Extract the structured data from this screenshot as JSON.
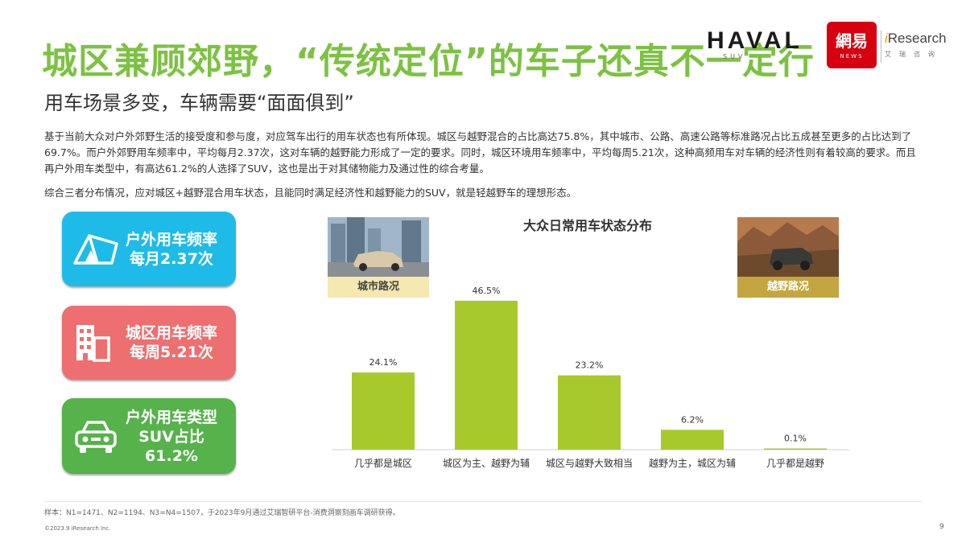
{
  "header": {
    "title": "城区兼顾郊野，“传统定位”的车子还真不一定行",
    "subtitle": "用车场景多变，车辆需要“面面俱到”"
  },
  "logos": {
    "haval_word": "HAVAL",
    "haval_tag": "SUV",
    "netease_cn": "網易",
    "netease_en": "NEWS",
    "iresearch_word": "iResearch",
    "iresearch_cn": "艾瑞咨询"
  },
  "body": {
    "paragraph1": "基于当前大众对户外郊野生活的接受度和参与度，对应驾车出行的用车状态也有所体现。城区与越野混合的占比高达75.8%，其中城市、公路、高速公路等标准路况占比五成甚至更多的占比达到了69.7%。而户外郊野用车频率中，平均每月2.37次，这对车辆的越野能力形成了一定的要求。同时，城区环境用车频率中，平均每周5.21次，这种高频用车对车辆的经济性则有着较高的要求。而且再户外用车类型中，有高达61.2%的人选择了SUV，这也是出于对其储物能力及通过性的综合考量。",
    "paragraph2": "综合三者分布情况，应对城区+越野混合用车状态，且能同时满足经济性和越野能力的SUV，就是轻越野车的理想形态。"
  },
  "cards": [
    {
      "line1": "户外用车频率",
      "line2": "每月2.37次",
      "line3": "",
      "color": "#1fbbe8",
      "icon": "tent-icon"
    },
    {
      "line1": "城区用车频率",
      "line2": "每周5.21次",
      "line3": "",
      "color": "#ed6f70",
      "icon": "building-icon"
    },
    {
      "line1": "户外用车类型",
      "line2": "SUV占比",
      "line3": "61.2%",
      "color": "#56b24a",
      "icon": "car-icon"
    }
  ],
  "photos": {
    "city_caption": "城市路况",
    "offroad_caption": "越野路况"
  },
  "chart_data": {
    "type": "bar",
    "title": "大众日常用车状态分布",
    "categories": [
      "几乎都是城区",
      "城区为主、越野为辅",
      "城区与越野大致相当",
      "越野为主，城区为辅",
      "几乎都是越野"
    ],
    "values": [
      24.1,
      46.5,
      23.2,
      6.2,
      0.1
    ],
    "value_labels": [
      "24.1%",
      "46.5%",
      "23.2%",
      "6.2%",
      "0.1%"
    ],
    "unit": "%",
    "ylim": [
      0,
      50
    ],
    "bar_color": "#a8c92b",
    "grid": false,
    "xlabel": "",
    "ylabel": ""
  },
  "footer": {
    "sample": "样本：N1=1471、N2=1194、N3=N4=1507，于2023年9月通过艾瑞智研平台-消费洞察刻画车调研获得。",
    "copyright": "©2023.9 iResearch Inc.",
    "page": "9"
  }
}
